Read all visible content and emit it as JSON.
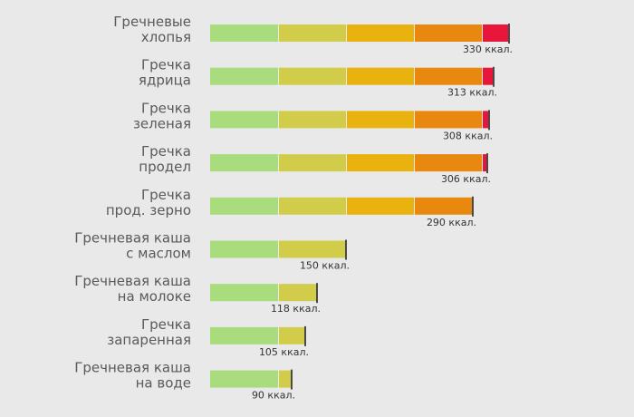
{
  "chart_data": {
    "type": "bar",
    "orientation": "horizontal",
    "categories": [
      [
        "Гречневые",
        "хлопья"
      ],
      [
        "Гречка",
        "ядрица"
      ],
      [
        "Гречка",
        "зеленая"
      ],
      [
        "Гречка",
        "продел"
      ],
      [
        "Гречка",
        "прод. зерно"
      ],
      [
        "Гречневая каша",
        "с маслом"
      ],
      [
        "Гречневая каша",
        "на молоке"
      ],
      [
        "Гречка",
        "запаренная"
      ],
      [
        "Гречневая каша",
        "на воде"
      ]
    ],
    "values": [
      330,
      313,
      308,
      306,
      290,
      150,
      118,
      105,
      90
    ],
    "value_labels": [
      "330 ккал.",
      "313 ккал.",
      "308 ккал.",
      "306 ккал.",
      "290 ккал.",
      "150 ккал.",
      "118 ккал.",
      "105 ккал.",
      "90 ккал."
    ],
    "xlim": [
      0,
      335
    ],
    "grid": false,
    "color_bands": [
      {
        "from": 0,
        "to": 75,
        "color": "#a8dc7c"
      },
      {
        "from": 75,
        "to": 150,
        "color": "#d1cd4a"
      },
      {
        "from": 150,
        "to": 225,
        "color": "#e9b20f"
      },
      {
        "from": 225,
        "to": 300,
        "color": "#e8880f"
      },
      {
        "from": 300,
        "to": 400,
        "color": "#e8163a"
      }
    ],
    "end_marker_color": "#4a4a4a"
  }
}
